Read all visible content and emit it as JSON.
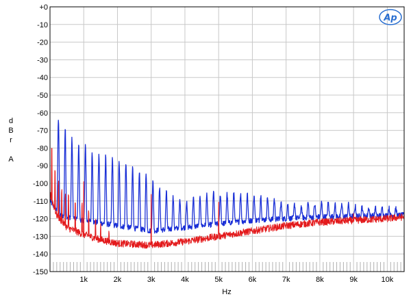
{
  "chart_data": {
    "type": "line",
    "ylabel": [
      "d",
      "B",
      "r",
      "",
      "A"
    ],
    "xlabel": "Hz",
    "x_unit": "Hz",
    "xlim": [
      0,
      10500
    ],
    "ylim": [
      -150,
      0
    ],
    "grid": true,
    "y_ticks": [
      {
        "value": 0,
        "label": "+0"
      },
      {
        "value": -10,
        "label": "-10"
      },
      {
        "value": -20,
        "label": "-20"
      },
      {
        "value": -30,
        "label": "-30"
      },
      {
        "value": -40,
        "label": "-40"
      },
      {
        "value": -50,
        "label": "-50"
      },
      {
        "value": -60,
        "label": "-60"
      },
      {
        "value": -70,
        "label": "-70"
      },
      {
        "value": -80,
        "label": "-80"
      },
      {
        "value": -90,
        "label": "-90"
      },
      {
        "value": -100,
        "label": "-100"
      },
      {
        "value": -110,
        "label": "-110"
      },
      {
        "value": -120,
        "label": "-120"
      },
      {
        "value": -130,
        "label": "-130"
      },
      {
        "value": -140,
        "label": "-140"
      },
      {
        "value": -150,
        "label": "-150"
      }
    ],
    "x_ticks": [
      {
        "value": 1000,
        "label": "1k"
      },
      {
        "value": 2000,
        "label": "2k"
      },
      {
        "value": 3000,
        "label": "3k"
      },
      {
        "value": 4000,
        "label": "4k"
      },
      {
        "value": 5000,
        "label": "5k"
      },
      {
        "value": 6000,
        "label": "6k"
      },
      {
        "value": 7000,
        "label": "7k"
      },
      {
        "value": 8000,
        "label": "8k"
      },
      {
        "value": 9000,
        "label": "9k"
      },
      {
        "value": 10000,
        "label": "10k"
      }
    ],
    "series": [
      {
        "color": "#1a2fd6",
        "kind": "spectrum",
        "fundamental_hz": 50,
        "spacing_hz": 200,
        "peaks": [
          [
            50,
            -112
          ],
          [
            250,
            -63
          ],
          [
            450,
            -69
          ],
          [
            650,
            -75
          ],
          [
            850,
            -78
          ],
          [
            1050,
            -79
          ],
          [
            1250,
            -82
          ],
          [
            1450,
            -84
          ],
          [
            1650,
            -85
          ],
          [
            1850,
            -86
          ],
          [
            2050,
            -88
          ],
          [
            2250,
            -89
          ],
          [
            2450,
            -91
          ],
          [
            2650,
            -94
          ],
          [
            2850,
            -95
          ],
          [
            3050,
            -99
          ],
          [
            3250,
            -103
          ],
          [
            3450,
            -105
          ],
          [
            3650,
            -108
          ],
          [
            3850,
            -110
          ],
          [
            4050,
            -111
          ],
          [
            4250,
            -108
          ],
          [
            4450,
            -108
          ],
          [
            4650,
            -106
          ],
          [
            4850,
            -105
          ],
          [
            5050,
            -106
          ],
          [
            5250,
            -106
          ],
          [
            5450,
            -105
          ],
          [
            5650,
            -106
          ],
          [
            5850,
            -106
          ],
          [
            6050,
            -107
          ],
          [
            6250,
            -107
          ],
          [
            6450,
            -108
          ],
          [
            6650,
            -109
          ],
          [
            6850,
            -111
          ],
          [
            7050,
            -112
          ],
          [
            7250,
            -112
          ],
          [
            7450,
            -113
          ],
          [
            7650,
            -111
          ],
          [
            7850,
            -112
          ],
          [
            8050,
            -111
          ],
          [
            8250,
            -111
          ],
          [
            8450,
            -112
          ],
          [
            8650,
            -112
          ],
          [
            8850,
            -112
          ],
          [
            9050,
            -113
          ],
          [
            9250,
            -113
          ],
          [
            9450,
            -114
          ],
          [
            9650,
            -114
          ],
          [
            9850,
            -114
          ],
          [
            10050,
            -114
          ],
          [
            10250,
            -114
          ]
        ],
        "floor": [
          [
            0,
            -110
          ],
          [
            300,
            -118
          ],
          [
            1000,
            -121
          ],
          [
            3000,
            -127
          ],
          [
            4500,
            -124
          ],
          [
            6000,
            -121
          ],
          [
            8000,
            -119
          ],
          [
            10500,
            -118
          ]
        ]
      },
      {
        "color": "#e31a1c",
        "kind": "spectrum",
        "fundamental_hz": 50,
        "peaks": [
          [
            50,
            -80
          ],
          [
            150,
            -93
          ],
          [
            250,
            -100
          ],
          [
            350,
            -104
          ],
          [
            450,
            -107
          ],
          [
            550,
            -108
          ],
          [
            750,
            -110
          ],
          [
            950,
            -112
          ],
          [
            1000,
            -101
          ],
          [
            1150,
            -116
          ],
          [
            1350,
            -120
          ],
          [
            1500,
            -124
          ],
          [
            1750,
            -128
          ],
          [
            3000,
            -108
          ],
          [
            5000,
            -109
          ],
          [
            9000,
            -119
          ]
        ],
        "floor": [
          [
            0,
            -106
          ],
          [
            200,
            -118
          ],
          [
            500,
            -125
          ],
          [
            1000,
            -129
          ],
          [
            1500,
            -132
          ],
          [
            2000,
            -134
          ],
          [
            3000,
            -135
          ],
          [
            4000,
            -133
          ],
          [
            5000,
            -130
          ],
          [
            6000,
            -127
          ],
          [
            7000,
            -124
          ],
          [
            8000,
            -122
          ],
          [
            9000,
            -121
          ],
          [
            10000,
            -120
          ],
          [
            10500,
            -119
          ]
        ]
      }
    ]
  },
  "logo": {
    "text": "Ap"
  }
}
